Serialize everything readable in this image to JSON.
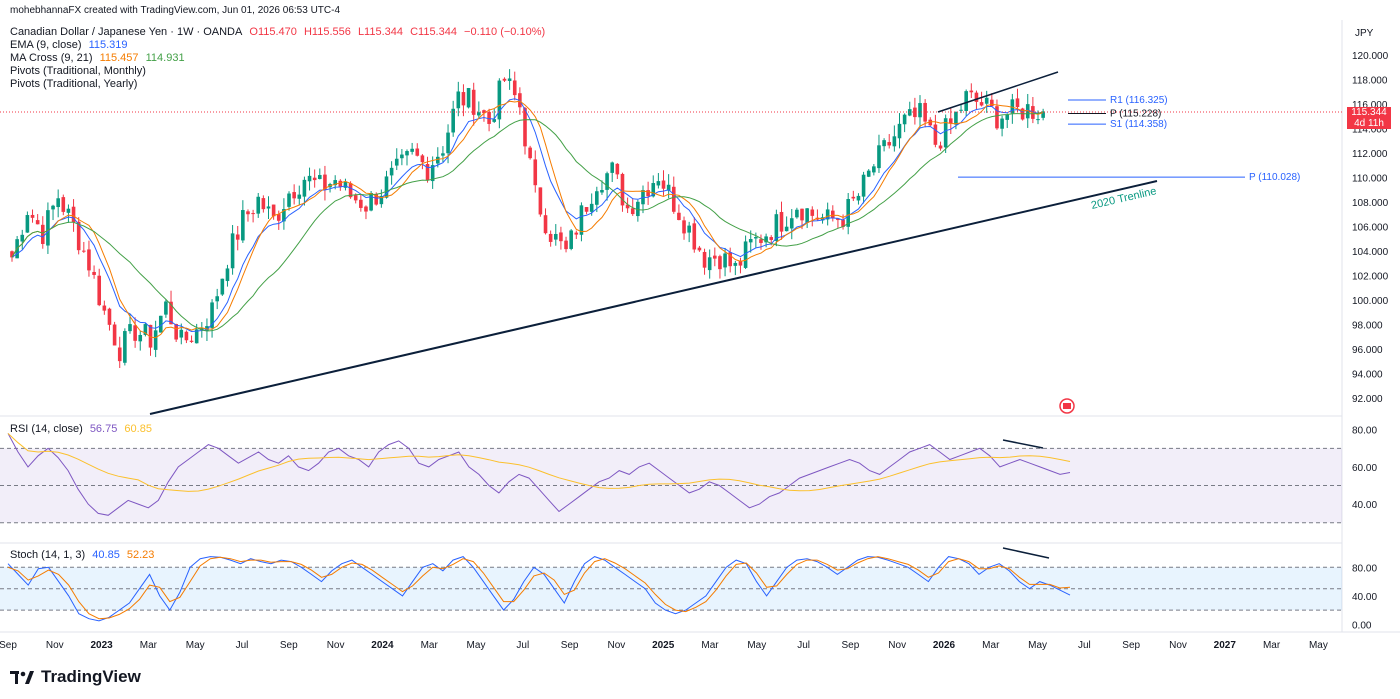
{
  "header": {
    "credit": "mohebhannaFX created with TradingView.com, Jun 01, 2026 06:53 UTC-4",
    "symbol": "Canadian Dollar / Japanese Yen · 1W · OANDA",
    "ohlc": {
      "o": "O115.470",
      "h": "H115.556",
      "l": "L115.344",
      "c": "C115.344",
      "chg": "−0.110 (−0.10%)"
    },
    "ema": {
      "label": "EMA (9, close)",
      "value": "115.319"
    },
    "macross": {
      "label": "MA Cross (9, 21)",
      "v1": "115.457",
      "v2": "114.931"
    },
    "pivot_monthly": "Pivots (Traditional, Monthly)",
    "pivot_yearly": "Pivots (Traditional, Yearly)"
  },
  "currency": "JPY",
  "price_box": {
    "price": "115.344",
    "countdown": "4d 11h"
  },
  "colors": {
    "up": "#089981",
    "down": "#f23645",
    "ema": "#2962ff",
    "ma9": "#f57c00",
    "ma21": "#43a047",
    "rsi": "#7e57c2",
    "rsi_ma": "#fbc02d",
    "stoch_k": "#2962ff",
    "stoch_d": "#f57c00",
    "trend": "#0b1f3a"
  },
  "chart_data": {
    "type": "candlestick",
    "price_axis": {
      "min": 92,
      "max": 120,
      "ticks": [
        "120.000",
        "118.000",
        "116.000",
        "114.000",
        "112.000",
        "110.000",
        "108.000",
        "106.000",
        "104.000",
        "102.000",
        "100.000",
        "98.000",
        "96.000",
        "94.000",
        "92.000"
      ]
    },
    "time_axis": {
      "ticks": [
        "Sep",
        "Nov",
        "2023",
        "Mar",
        "May",
        "Jul",
        "Sep",
        "Nov",
        "2024",
        "Mar",
        "May",
        "Jul",
        "Sep",
        "Nov",
        "2025",
        "Mar",
        "May",
        "Jul",
        "Sep",
        "Nov",
        "2026",
        "Mar",
        "May",
        "Jul",
        "Sep",
        "Nov",
        "2027",
        "Mar",
        "May"
      ],
      "bold": [
        "2023",
        "2024",
        "2025",
        "2026",
        "2027"
      ]
    },
    "close_path": [
      [
        0,
        103.5
      ],
      [
        3,
        107.5
      ],
      [
        6,
        105.5
      ],
      [
        9,
        108.5
      ],
      [
        12,
        106.0
      ],
      [
        15,
        103.0
      ],
      [
        18,
        99.0
      ],
      [
        21,
        96.0
      ],
      [
        24,
        97.5
      ],
      [
        27,
        96.8
      ],
      [
        30,
        99.5
      ],
      [
        33,
        96.5
      ],
      [
        36,
        97.5
      ],
      [
        39,
        99.2
      ],
      [
        42,
        103.5
      ],
      [
        45,
        106.5
      ],
      [
        48,
        108.2
      ],
      [
        51,
        106.5
      ],
      [
        54,
        108.8
      ],
      [
        57,
        110.0
      ],
      [
        60,
        109.2
      ],
      [
        63,
        109.8
      ],
      [
        66,
        108.5
      ],
      [
        69,
        107.8
      ],
      [
        72,
        109.0
      ],
      [
        75,
        110.5
      ],
      [
        78,
        111.8
      ],
      [
        81,
        110.8
      ],
      [
        84,
        112.6
      ],
      [
        87,
        116.5
      ],
      [
        90,
        116.2
      ],
      [
        93,
        114.5
      ],
      [
        96,
        118.0
      ],
      [
        99,
        115.8
      ],
      [
        102,
        108.5
      ],
      [
        105,
        105.5
      ],
      [
        108,
        103.8
      ],
      [
        111,
        107.0
      ],
      [
        114,
        109.8
      ],
      [
        117,
        110.5
      ],
      [
        120,
        107.5
      ],
      [
        123,
        109.0
      ],
      [
        126,
        110.3
      ],
      [
        129,
        108.0
      ],
      [
        132,
        105.8
      ],
      [
        135,
        103.5
      ],
      [
        138,
        103.6
      ],
      [
        141,
        102.5
      ],
      [
        144,
        104.5
      ],
      [
        147,
        105.5
      ],
      [
        150,
        106.5
      ],
      [
        153,
        107.8
      ],
      [
        156,
        107.0
      ],
      [
        159,
        106.5
      ],
      [
        162,
        106.8
      ],
      [
        165,
        108.5
      ],
      [
        168,
        111.0
      ],
      [
        171,
        112.8
      ],
      [
        174,
        114.5
      ],
      [
        177,
        115.0
      ],
      [
        180,
        112.8
      ],
      [
        183,
        114.3
      ],
      [
        186,
        116.5
      ],
      [
        189,
        116.0
      ],
      [
        192,
        115.0
      ],
      [
        195,
        115.3
      ],
      [
        198,
        115.6
      ],
      [
        201,
        115.34
      ]
    ],
    "trendlines": [
      {
        "name": "2020 Trenline",
        "points": [
          [
            144,
            0
          ],
          [
            1157,
            0
          ]
        ]
      },
      {
        "name": "upper",
        "points": [
          [
            938,
            0
          ],
          [
            1058,
            0
          ]
        ]
      }
    ],
    "trendline_label": "2020 Trenline",
    "pivots": [
      {
        "label": "R1 (116.325)",
        "value": 116.325
      },
      {
        "label": "P (115.228)",
        "value": 115.228
      },
      {
        "label": "S1 (114.358)",
        "value": 114.358
      },
      {
        "label": "P (110.028)",
        "value": 110.028
      }
    ],
    "rsi": {
      "label": "RSI (14, close)",
      "value": "56.75",
      "ma_value": "60.85",
      "axis_ticks": [
        "80.00",
        "60.00",
        "40.00"
      ],
      "band": [
        30,
        70
      ],
      "min": 25,
      "max": 82,
      "values": [
        78,
        68,
        60,
        66,
        70,
        65,
        58,
        48,
        40,
        35,
        34,
        38,
        42,
        40,
        38,
        42,
        52,
        60,
        64,
        68,
        72,
        70,
        66,
        62,
        65,
        68,
        64,
        62,
        66,
        60,
        58,
        62,
        68,
        70,
        66,
        64,
        60,
        68,
        72,
        74,
        70,
        62,
        60,
        64,
        66,
        68,
        60,
        56,
        50,
        46,
        52,
        56,
        54,
        48,
        42,
        36,
        40,
        44,
        48,
        52,
        54,
        58,
        56,
        60,
        62,
        58,
        54,
        50,
        46,
        48,
        52,
        50,
        46,
        42,
        38,
        40,
        44,
        46,
        50,
        54,
        56,
        58,
        60,
        62,
        64,
        62,
        58,
        56,
        60,
        64,
        68,
        70,
        72,
        68,
        64,
        66,
        68,
        70,
        66,
        60,
        62,
        64,
        62,
        60,
        58,
        56,
        57
      ]
    },
    "stoch": {
      "label": "Stoch (14, 1, 3)",
      "k_value": "40.85",
      "d_value": "52.23",
      "axis_ticks": [
        "80.00",
        "40.00",
        "0.00"
      ],
      "band": [
        20,
        80
      ],
      "min": -5,
      "max": 100,
      "k": [
        85,
        70,
        55,
        78,
        80,
        60,
        40,
        15,
        8,
        5,
        10,
        20,
        30,
        50,
        70,
        40,
        20,
        45,
        80,
        92,
        95,
        94,
        90,
        85,
        92,
        88,
        85,
        90,
        88,
        80,
        70,
        60,
        75,
        85,
        90,
        80,
        70,
        60,
        50,
        40,
        60,
        80,
        85,
        75,
        90,
        95,
        80,
        60,
        40,
        20,
        35,
        60,
        80,
        70,
        50,
        30,
        60,
        85,
        95,
        90,
        80,
        70,
        60,
        50,
        30,
        20,
        15,
        20,
        30,
        40,
        60,
        80,
        90,
        85,
        60,
        40,
        60,
        80,
        90,
        92,
        88,
        80,
        70,
        80,
        90,
        95,
        94,
        90,
        85,
        80,
        70,
        60,
        80,
        95,
        92,
        85,
        70,
        80,
        85,
        75,
        60,
        50,
        60,
        55,
        48,
        41
      ],
      "d": [
        80,
        75,
        62,
        68,
        76,
        70,
        55,
        32,
        15,
        8,
        9,
        14,
        22,
        35,
        55,
        52,
        32,
        38,
        60,
        82,
        92,
        94,
        92,
        88,
        90,
        90,
        87,
        88,
        88,
        84,
        76,
        66,
        70,
        80,
        86,
        84,
        76,
        66,
        56,
        46,
        54,
        68,
        80,
        78,
        84,
        92,
        88,
        72,
        52,
        32,
        32,
        48,
        68,
        72,
        62,
        42,
        48,
        72,
        88,
        92,
        86,
        78,
        68,
        58,
        42,
        28,
        20,
        18,
        24,
        32,
        48,
        68,
        84,
        86,
        72,
        52,
        54,
        70,
        84,
        90,
        90,
        84,
        76,
        78,
        86,
        92,
        95,
        92,
        88,
        84,
        76,
        66,
        72,
        88,
        92,
        88,
        78,
        78,
        82,
        78,
        66,
        56,
        56,
        56,
        51,
        52
      ]
    },
    "rsi_divergence": true,
    "stoch_divergence": true
  },
  "footer": {
    "brand": "TradingView"
  }
}
